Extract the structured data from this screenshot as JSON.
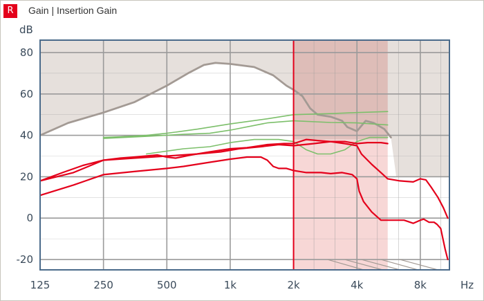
{
  "window": {
    "side_badge": "R",
    "title": "Gain | Insertion Gain"
  },
  "colors": {
    "plot_border": "#4a6a8a",
    "grid": "#9a9a9a",
    "shade": "#e6e0dc",
    "highlight": "#f6d3d1",
    "highlight_dark": "#dcb6b2",
    "marker": "#e4001b",
    "target": "#e4001b",
    "prescription": "#7cbf6a",
    "uncomfortable": "#a39a94"
  },
  "chart_data": {
    "type": "line",
    "title": "",
    "ylabel": "dB",
    "xlabel": "Hz",
    "xscale": "log",
    "xlim": [
      125,
      11000
    ],
    "ylim": [
      -25,
      86
    ],
    "grid": true,
    "x_ticks": [
      125,
      250,
      500,
      1000,
      2000,
      4000,
      8000
    ],
    "x_tick_labels": [
      "125",
      "250",
      "500",
      "1k",
      "2k",
      "4k",
      "8k"
    ],
    "y_ticks": [
      -20,
      0,
      20,
      40,
      60,
      80
    ],
    "y_tick_labels": [
      "-20",
      "0",
      "20",
      "40",
      "60",
      "80"
    ],
    "highlight_band": [
      2000,
      5600
    ],
    "marker_line": 2000,
    "series": [
      {
        "kind": "uncomfortable",
        "points": [
          [
            125,
            40
          ],
          [
            170,
            46
          ],
          [
            250,
            51
          ],
          [
            350,
            56
          ],
          [
            500,
            64
          ],
          [
            630,
            70
          ],
          [
            750,
            74
          ],
          [
            850,
            75
          ],
          [
            1000,
            74.5
          ],
          [
            1300,
            73
          ],
          [
            1600,
            69
          ],
          [
            1850,
            64
          ],
          [
            2000,
            62
          ],
          [
            2200,
            59
          ],
          [
            2400,
            53
          ],
          [
            2600,
            50
          ],
          [
            3000,
            49
          ],
          [
            3400,
            47
          ],
          [
            3600,
            44
          ],
          [
            4000,
            42
          ],
          [
            4400,
            47
          ],
          [
            4800,
            46
          ],
          [
            5400,
            43
          ],
          [
            5800,
            39
          ]
        ]
      },
      {
        "kind": "prescription",
        "points": [
          [
            250,
            39
          ],
          [
            300,
            39.3
          ],
          [
            400,
            40
          ],
          [
            500,
            41
          ],
          [
            700,
            43
          ],
          [
            1000,
            45.5
          ],
          [
            1500,
            48
          ],
          [
            2000,
            50
          ],
          [
            3000,
            50.5
          ],
          [
            4000,
            51
          ],
          [
            5600,
            51.5
          ]
        ]
      },
      {
        "kind": "prescription",
        "points": [
          [
            250,
            38.5
          ],
          [
            400,
            39.5
          ],
          [
            600,
            40.5
          ],
          [
            800,
            41
          ],
          [
            1000,
            42.5
          ],
          [
            1500,
            46
          ],
          [
            2000,
            47
          ],
          [
            3000,
            46.2
          ],
          [
            4000,
            46
          ],
          [
            5600,
            45
          ]
        ]
      },
      {
        "kind": "prescription",
        "points": [
          [
            400,
            31
          ],
          [
            600,
            33.5
          ],
          [
            800,
            34.5
          ],
          [
            1000,
            36.5
          ],
          [
            1300,
            38
          ],
          [
            1700,
            38
          ],
          [
            2000,
            37
          ],
          [
            2300,
            33
          ],
          [
            2600,
            31
          ],
          [
            3000,
            31
          ],
          [
            3500,
            33
          ],
          [
            4000,
            37
          ],
          [
            4600,
            39
          ],
          [
            5600,
            39
          ]
        ]
      },
      {
        "kind": "target",
        "points": [
          [
            125,
            18
          ],
          [
            160,
            22
          ],
          [
            200,
            25.5
          ],
          [
            250,
            28
          ],
          [
            300,
            29
          ],
          [
            350,
            29.5
          ],
          [
            450,
            30.5
          ],
          [
            500,
            29.5
          ],
          [
            550,
            29
          ],
          [
            650,
            30.5
          ],
          [
            800,
            32
          ],
          [
            1000,
            33.5
          ],
          [
            1200,
            34
          ],
          [
            1500,
            35.5
          ],
          [
            1800,
            36
          ],
          [
            2000,
            36
          ],
          [
            2300,
            38
          ],
          [
            2600,
            37.5
          ],
          [
            3000,
            37
          ],
          [
            3500,
            36
          ],
          [
            4000,
            35
          ],
          [
            4200,
            31
          ],
          [
            4700,
            26
          ],
          [
            5200,
            22
          ],
          [
            5600,
            19
          ],
          [
            6400,
            18
          ],
          [
            7400,
            17.5
          ],
          [
            8000,
            19
          ],
          [
            8500,
            18.5
          ],
          [
            9000,
            15
          ],
          [
            9700,
            10
          ],
          [
            10300,
            5
          ],
          [
            10800,
            0
          ]
        ]
      },
      {
        "kind": "target",
        "points": [
          [
            125,
            11
          ],
          [
            180,
            16
          ],
          [
            250,
            21
          ],
          [
            350,
            22.5
          ],
          [
            500,
            24
          ],
          [
            600,
            25
          ],
          [
            800,
            27
          ],
          [
            1000,
            28.5
          ],
          [
            1200,
            29.5
          ],
          [
            1400,
            29.5
          ],
          [
            1500,
            28
          ],
          [
            1600,
            25
          ],
          [
            1700,
            24
          ],
          [
            1850,
            24
          ],
          [
            2000,
            23
          ],
          [
            2300,
            22
          ],
          [
            2700,
            22
          ],
          [
            3000,
            21.5
          ],
          [
            3400,
            22
          ],
          [
            3800,
            21
          ],
          [
            4000,
            19
          ],
          [
            4100,
            13
          ],
          [
            4300,
            8
          ],
          [
            4700,
            3
          ],
          [
            5200,
            -1
          ],
          [
            5800,
            -1
          ],
          [
            6700,
            -1
          ],
          [
            7400,
            -2.5
          ],
          [
            8000,
            -1
          ],
          [
            8300,
            -0.5
          ],
          [
            8800,
            -2
          ],
          [
            9300,
            -2
          ],
          [
            9600,
            -3
          ],
          [
            10000,
            -5
          ],
          [
            10500,
            -15
          ],
          [
            10800,
            -20
          ]
        ]
      },
      {
        "kind": "target",
        "points": [
          [
            125,
            18
          ],
          [
            180,
            22
          ],
          [
            250,
            28
          ],
          [
            350,
            29
          ],
          [
            500,
            30
          ],
          [
            700,
            31
          ],
          [
            900,
            32
          ],
          [
            1100,
            33.5
          ],
          [
            1400,
            34.5
          ],
          [
            1700,
            35.5
          ],
          [
            2000,
            35
          ],
          [
            2500,
            36
          ],
          [
            3000,
            37
          ],
          [
            3500,
            37
          ],
          [
            4000,
            36
          ],
          [
            4500,
            36.5
          ],
          [
            5200,
            36.5
          ],
          [
            5600,
            36
          ]
        ]
      }
    ]
  }
}
